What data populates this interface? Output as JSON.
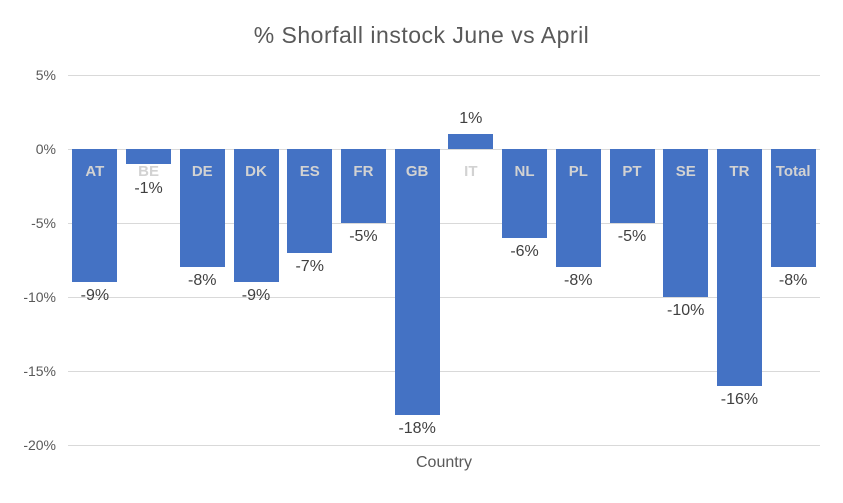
{
  "colors": {
    "bar": "#4472C4",
    "gridline": "#D9D9D9",
    "category_label": "#D2D2D2",
    "data_label": "#404040",
    "axis_text": "#595959",
    "background": "#FFFFFF"
  },
  "chart_data": {
    "type": "bar",
    "title": "% Shorfall instock June vs April",
    "xlabel": "Country",
    "ylabel": "",
    "categories": [
      "AT",
      "BE",
      "DE",
      "DK",
      "ES",
      "FR",
      "GB",
      "IT",
      "NL",
      "PL",
      "PT",
      "SE",
      "TR",
      "Total"
    ],
    "values": [
      -9,
      -1,
      -8,
      -9,
      -7,
      -5,
      -18,
      1,
      -6,
      -8,
      -5,
      -10,
      -16,
      -8
    ],
    "data_labels": [
      "-9%",
      "-1%",
      "-8%",
      "-9%",
      "-7%",
      "-5%",
      "-18%",
      "1%",
      "-6%",
      "-8%",
      "-5%",
      "-10%",
      "-16%",
      "-8%"
    ],
    "y_ticks": [
      "5%",
      "0%",
      "-5%",
      "-10%",
      "-15%",
      "-20%"
    ],
    "ylim": [
      -20,
      5
    ],
    "grid": true,
    "legend": false,
    "label_position": "outside-end",
    "category_label_position": "inside-top-below-zero-axis"
  }
}
